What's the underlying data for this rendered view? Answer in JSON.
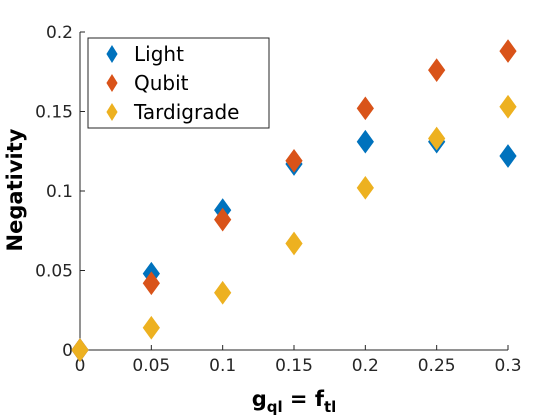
{
  "chart_data": {
    "type": "scatter",
    "xlabel": "g",
    "xlabel_sub1": "ql",
    "xlabel_mid": " = f",
    "xlabel_sub2": "tl",
    "ylabel": "Negativity",
    "xlim": [
      0,
      0.3
    ],
    "ylim": [
      0,
      0.2
    ],
    "x_ticks": [
      0,
      0.05,
      0.1,
      0.15,
      0.2,
      0.25,
      0.3
    ],
    "x_tick_labels": [
      "0",
      "0.05",
      "0.1",
      "0.15",
      "0.2",
      "0.25",
      "0.3"
    ],
    "y_ticks": [
      0,
      0.05,
      0.1,
      0.15,
      0.2
    ],
    "y_tick_labels": [
      "0",
      "0.05",
      "0.1",
      "0.15",
      "0.2"
    ],
    "grid": false,
    "legend_position": "top-left",
    "series": [
      {
        "name": "Light",
        "color": "#0072BD",
        "x": [
          0,
          0.05,
          0.1,
          0.15,
          0.2,
          0.25,
          0.3
        ],
        "y": [
          0,
          0.048,
          0.088,
          0.117,
          0.131,
          0.131,
          0.122
        ]
      },
      {
        "name": "Qubit",
        "color": "#D95319",
        "x": [
          0,
          0.05,
          0.1,
          0.15,
          0.2,
          0.25,
          0.3
        ],
        "y": [
          0,
          0.042,
          0.082,
          0.119,
          0.152,
          0.176,
          0.188
        ]
      },
      {
        "name": "Tardigrade",
        "color": "#EDB120",
        "x": [
          0,
          0.05,
          0.1,
          0.15,
          0.2,
          0.25,
          0.3
        ],
        "y": [
          0,
          0.014,
          0.036,
          0.067,
          0.102,
          0.133,
          0.153
        ]
      }
    ]
  }
}
